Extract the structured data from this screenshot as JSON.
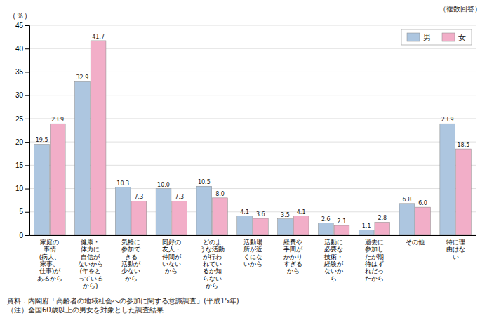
{
  "chart_data": {
    "type": "bar",
    "y_label": "（％）",
    "annotations": [
      "（複数回答）",
      "資料：内閣府「高齢者の地域社会への参加に関する意識調査」(平成15年)\n（注）全国60歳以上の男女を対象とした調査結果"
    ],
    "categories": [
      "家庭の\n事情\n(病人、\n家事、\n仕事)が\nあるから",
      "健康・\n体力に\n自信が\nないから\n(年をと\nっている\nから)",
      "気軽に\n参加で\nきる\n活動が\n少ない\nから",
      "同好の\n友人・\n仲間が\nいない\nから",
      "どのよ\nうな活動\nが行わ\nれてい\nるか知\nらない\nから",
      "活動場\n所が近\nくにな\nいから",
      "経費や\n手間が\nかかり\nすぎる\nから",
      "活動に\n必要な\n技術・\n経験が\nないか\nら",
      "過去に\n参加し\nたが期\n待はず\nれだっ\nたから",
      "その他",
      "特に理\n由はな\nい"
    ],
    "series": [
      {
        "name": "男",
        "color": "#adc6e0",
        "values": [
          19.5,
          32.9,
          10.3,
          10.0,
          10.5,
          4.1,
          3.5,
          2.6,
          1.1,
          6.8,
          23.9
        ],
        "value_labels": [
          "19.5",
          "32.9",
          "10.3",
          "10.0",
          "10.5",
          "4.1",
          "3.5",
          "2.6",
          "1.1",
          "6.8",
          "23.9"
        ]
      },
      {
        "name": "女",
        "color": "#f2aec8",
        "values": [
          23.9,
          41.7,
          7.3,
          7.3,
          8.0,
          3.6,
          4.1,
          2.1,
          2.8,
          6.0,
          18.5
        ],
        "value_labels": [
          "23.9",
          "41.7",
          "7.3",
          "7.3",
          "8.0",
          "3.6",
          "4.1",
          "2.1",
          "2.8",
          "6.0",
          "18.5"
        ]
      }
    ],
    "ylim": [
      0,
      45
    ],
    "yticks": [
      0,
      5,
      10,
      15,
      20,
      25,
      30,
      35,
      40,
      45
    ],
    "grid": true,
    "legend": "upper right",
    "data_labels": true
  }
}
